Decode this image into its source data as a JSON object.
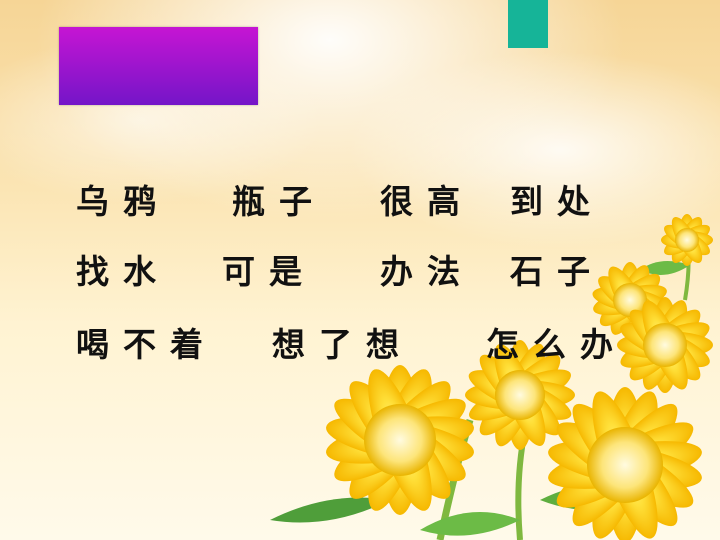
{
  "slide": {
    "rows": [
      [
        "乌鸦",
        "瓶子",
        "很高",
        "到处"
      ],
      [
        "找水",
        "可是",
        "办法",
        "石子"
      ],
      [
        "喝不着",
        "想了想",
        "怎么办"
      ]
    ]
  },
  "colors": {
    "title_box_top": "#c615d3",
    "title_box_bottom": "#7415c8",
    "accent_tab": "#16b498",
    "text": "#111111"
  }
}
